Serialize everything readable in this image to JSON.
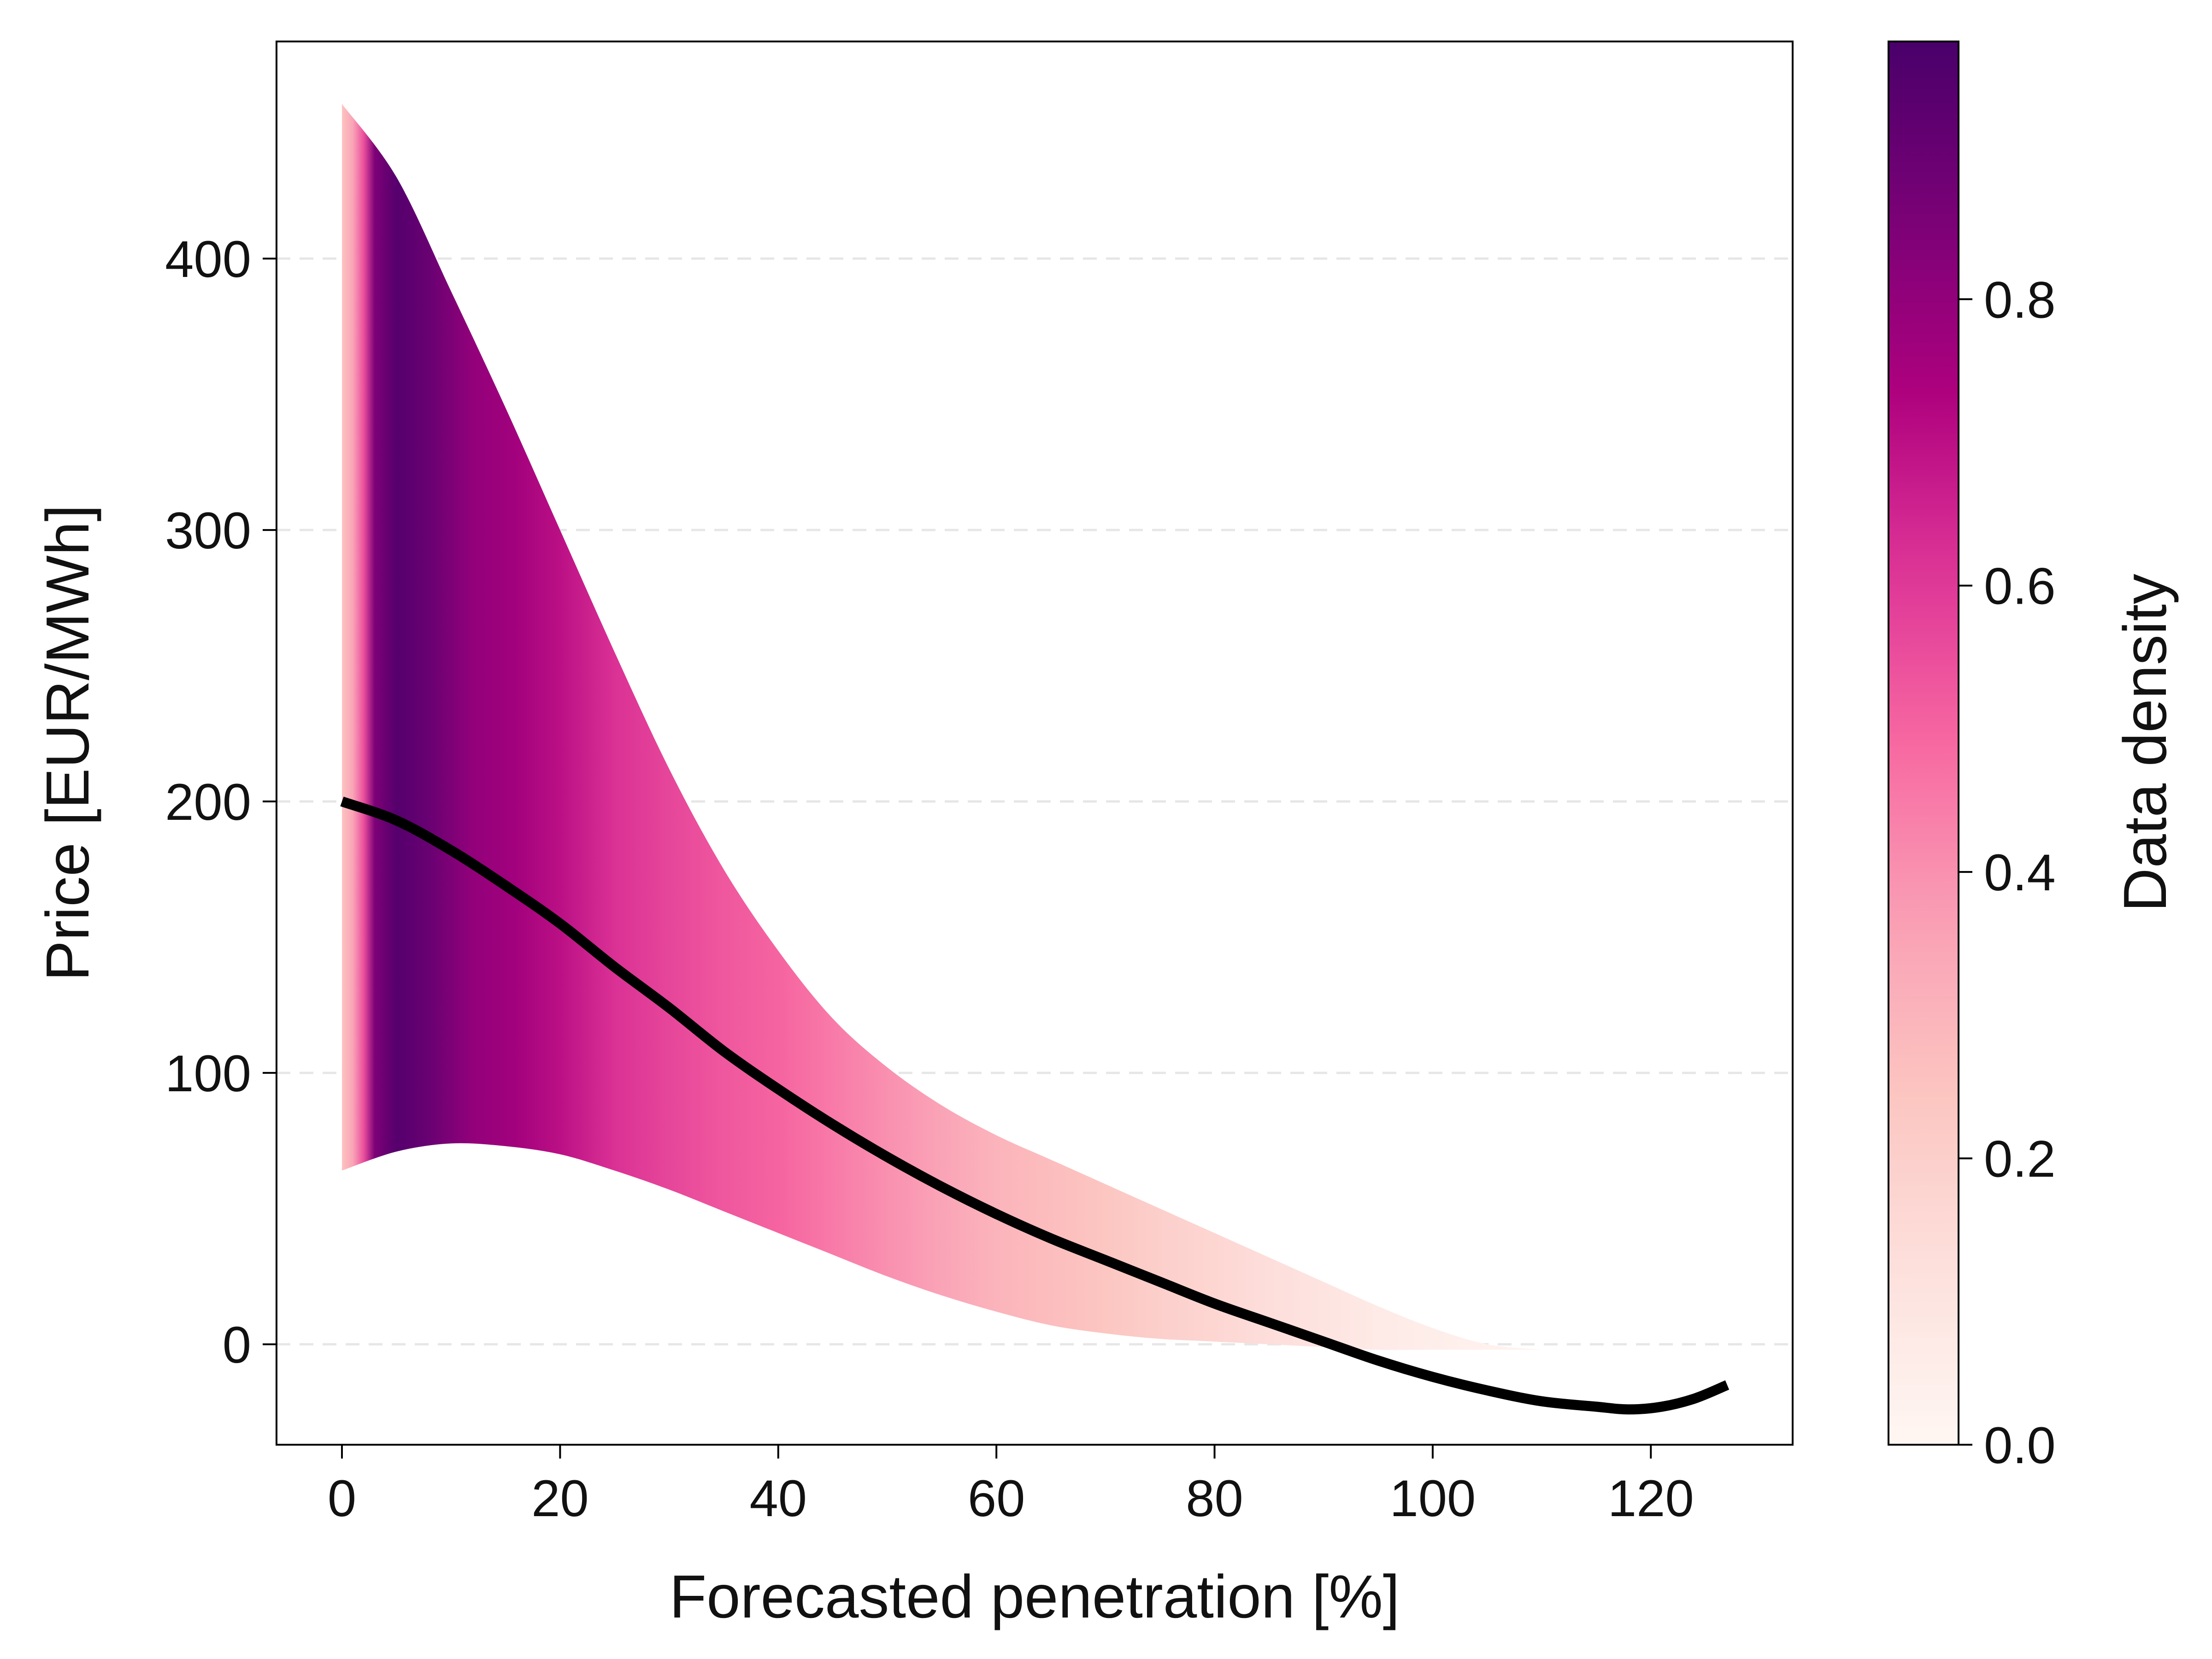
{
  "chart_data": {
    "type": "area",
    "xlabel": "Forecasted penetration [%]",
    "ylabel": "Price [EUR/MWh]",
    "colorbar_label": "Data density",
    "xlim": [
      -6,
      133
    ],
    "ylim": [
      -37,
      480
    ],
    "xticks": [
      0,
      20,
      40,
      60,
      80,
      100,
      120
    ],
    "yticks": [
      0,
      100,
      200,
      300,
      400
    ],
    "colorbar_range": [
      0.0,
      0.98
    ],
    "colorbar_ticks": [
      0.0,
      0.2,
      0.4,
      0.6,
      0.8
    ],
    "grid": "horizontal dashed",
    "series": [
      {
        "kind": "line",
        "x": [
          0,
          5,
          10,
          15,
          20,
          25,
          30,
          35,
          40,
          45,
          50,
          55,
          60,
          65,
          70,
          75,
          80,
          85,
          90,
          95,
          100,
          105,
          110,
          115,
          118,
          121,
          124,
          127
        ],
        "y": [
          200,
          193,
          182,
          169,
          155,
          139,
          124,
          108,
          94,
          81,
          69,
          58,
          48,
          39,
          31,
          23,
          15,
          8,
          1,
          -6,
          -12,
          -17,
          -21,
          -23,
          -24,
          -23,
          -20,
          -15
        ]
      },
      {
        "kind": "band_upper",
        "x": [
          0,
          5,
          10,
          15,
          20,
          25,
          30,
          35,
          40,
          45,
          50,
          55,
          60,
          65,
          70,
          75,
          80,
          85,
          90,
          95,
          100,
          105,
          110
        ],
        "y": [
          457,
          430,
          388,
          345,
          300,
          255,
          212,
          175,
          145,
          120,
          102,
          88,
          77,
          68,
          59,
          50,
          41,
          32,
          23,
          14,
          6,
          0,
          -2
        ]
      },
      {
        "kind": "band_lower",
        "x": [
          0,
          5,
          10,
          15,
          20,
          25,
          30,
          35,
          40,
          45,
          50,
          55,
          60,
          65,
          70,
          75,
          80,
          85,
          90,
          95,
          100,
          105,
          110
        ],
        "y": [
          64,
          71,
          74,
          73,
          70,
          64,
          57,
          49,
          41,
          33,
          25,
          18,
          12,
          7,
          4,
          2,
          1,
          0,
          -1,
          -2,
          -2,
          -2,
          -2
        ]
      },
      {
        "kind": "density",
        "x": [
          0,
          1,
          2,
          3,
          5,
          8,
          12,
          16,
          20,
          25,
          30,
          35,
          40,
          45,
          50,
          55,
          60,
          65,
          70,
          75,
          80,
          85,
          90,
          95,
          100,
          105,
          110
        ],
        "y": [
          0.25,
          0.35,
          0.55,
          0.85,
          0.95,
          0.9,
          0.8,
          0.76,
          0.7,
          0.62,
          0.57,
          0.53,
          0.5,
          0.45,
          0.4,
          0.35,
          0.3,
          0.27,
          0.24,
          0.2,
          0.17,
          0.13,
          0.1,
          0.07,
          0.05,
          0.03,
          0.02
        ]
      }
    ]
  }
}
